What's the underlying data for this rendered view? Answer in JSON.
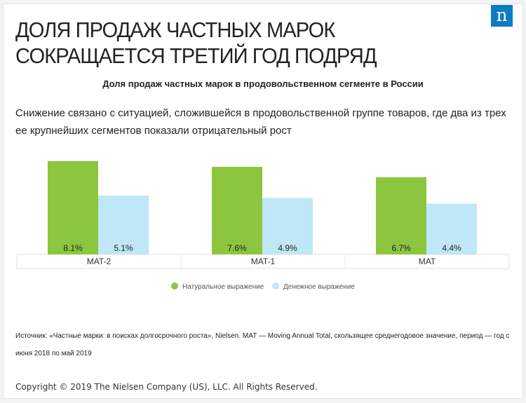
{
  "headline": "ДОЛЯ ПРОДАЖ ЧАСТНЫХ МАРОК СОКРАЩАЕТСЯ ТРЕТИЙ ГОД ПОДРЯД",
  "logo_letter": "n",
  "brand_color": "#0c7cc1",
  "subtitle": "Снижение связано с ситуацией, сложившейся в продовольственной группе товаров, где два из трех ее крупнейших сегментов показали отрицательный рост",
  "source": "Источник: «Частные марки: в поисках долгосрочного роста», Nielsen. МАТ — Moving Annual Total, скользящее среднегодовое значение, период  — год с июня 2018 по май 2019",
  "copyright": "Copyright © 2019 The Nielsen Company (US), LLC. All Rights Reserved.",
  "chart_data": {
    "type": "bar",
    "title": "Доля продаж частных марок в продовольственном сегменте в России",
    "categories": [
      "MAT-2",
      "MAT-1",
      "MAT"
    ],
    "series": [
      {
        "name": "Натуральное выражение",
        "values": [
          8.1,
          7.6,
          6.7
        ],
        "color": "#8cc63f"
      },
      {
        "name": "Денежное выражение",
        "values": [
          5.1,
          4.9,
          4.4
        ],
        "color": "#bfe7f7"
      }
    ],
    "value_suffix": "%",
    "ylim": [
      0,
      8.7
    ],
    "grid": false,
    "legend_position": "bottom-center"
  }
}
